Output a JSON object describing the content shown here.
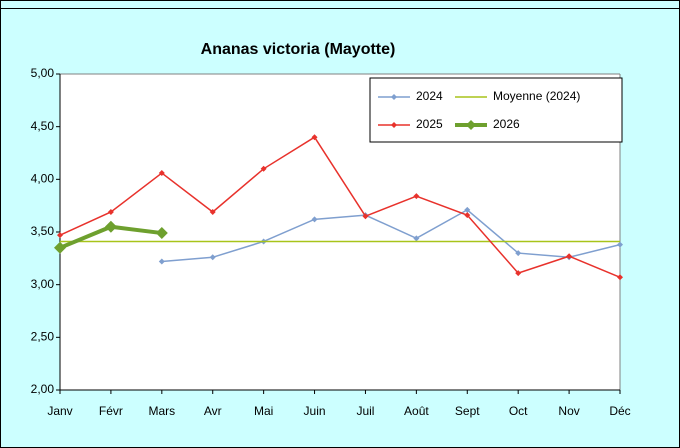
{
  "chart_data": {
    "type": "line",
    "title": "Ananas victoria (Mayotte)",
    "categories": [
      "Janv",
      "Févr",
      "Mars",
      "Avr",
      "Mai",
      "Juin",
      "Juil",
      "Août",
      "Sept",
      "Oct",
      "Nov",
      "Déc"
    ],
    "series": [
      {
        "name": "2024",
        "color": "#7f9fcf",
        "values": [
          null,
          null,
          3.22,
          3.26,
          3.41,
          3.62,
          3.66,
          3.44,
          3.71,
          3.3,
          3.26,
          3.38
        ]
      },
      {
        "name": "Moyenne (2024)",
        "color": "#a8c41a",
        "values": [
          3.41,
          3.41,
          3.41,
          3.41,
          3.41,
          3.41,
          3.41,
          3.41,
          3.41,
          3.41,
          3.41,
          3.41
        ]
      },
      {
        "name": "2025",
        "color": "#e8322c",
        "values": [
          3.47,
          3.69,
          4.06,
          3.69,
          4.1,
          4.4,
          3.65,
          3.84,
          3.66,
          3.11,
          3.27,
          3.07
        ]
      },
      {
        "name": "2026",
        "color": "#6ea02e",
        "values": [
          3.35,
          3.55,
          3.49,
          null,
          null,
          null,
          null,
          null,
          null,
          null,
          null,
          null
        ]
      }
    ],
    "ylim": [
      2,
      5
    ],
    "yticks": [
      {
        "value": 2,
        "label": "2,00"
      },
      {
        "value": 2.5,
        "label": "2,50"
      },
      {
        "value": 3,
        "label": "3,00"
      },
      {
        "value": 3.5,
        "label": "3,50"
      },
      {
        "value": 4,
        "label": "4,00"
      },
      {
        "value": 4.5,
        "label": "4,50"
      },
      {
        "value": 5,
        "label": "5,00"
      }
    ],
    "grid": false
  }
}
